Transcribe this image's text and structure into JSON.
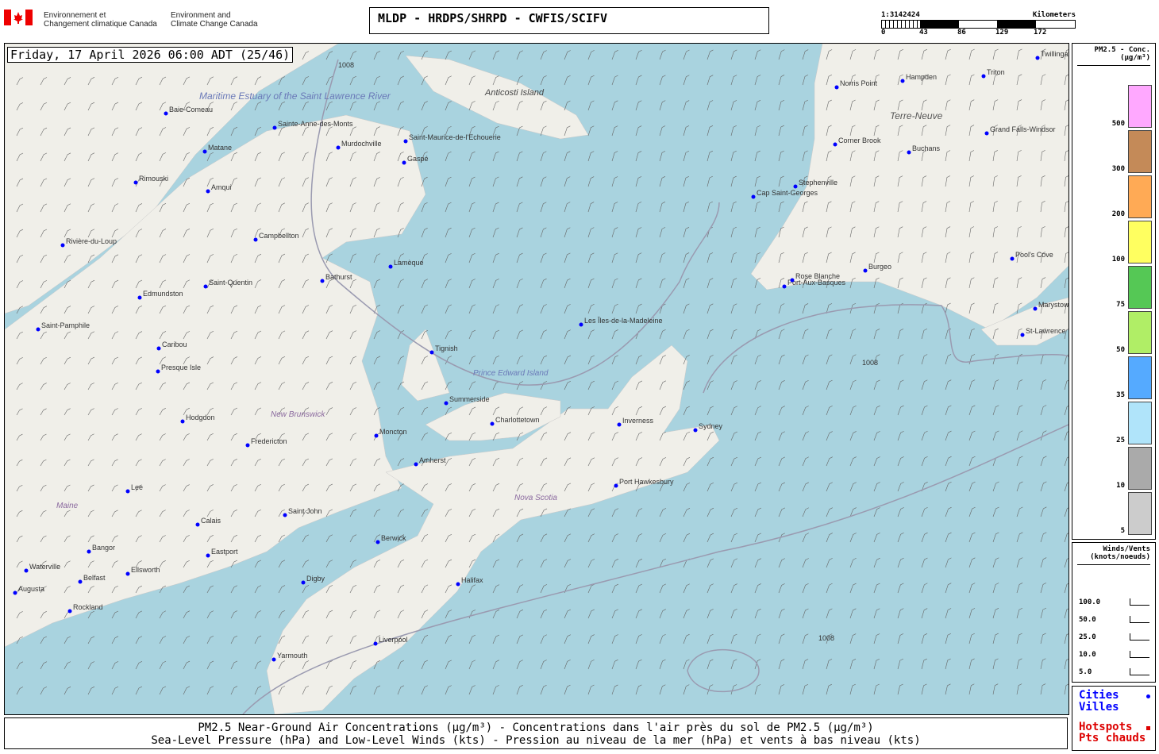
{
  "header": {
    "agency_fr": [
      "Environnement et",
      "Changement climatique Canada"
    ],
    "agency_en": [
      "Environment and",
      "Climate Change Canada"
    ],
    "title": "MLDP - HRDPS/SHRPD - CWFIS/SCIFV",
    "scale": {
      "ratio": "1:3142424",
      "unit": "Kilometers",
      "ticks": [
        "0",
        "43",
        "86",
        "129",
        "172"
      ]
    }
  },
  "map": {
    "datetime": "Friday, 17 April 2026 06:00 ADT (25/46)",
    "colors": {
      "water": "#a9d3df",
      "land": "#f0efe9",
      "city_dot": "#0000ff"
    },
    "region_labels": [
      "Maritime Estuary of the Saint Lawrence River",
      "Anticosti Island",
      "Terre-Neuve",
      "Prince Edward Island",
      "New Brunswick",
      "Nova Scotia",
      "Maine"
    ],
    "isobar_label": "1008",
    "cities": [
      "Baie-Comeau",
      "Sainte-Anne-des-Monts",
      "Matane",
      "Rimouski",
      "Amqui",
      "Murdochville",
      "Saint-Maurice-de-l'Echouerie",
      "Gaspé",
      "Rivière-du-Loup",
      "Campbellton",
      "Bathurst",
      "Lamèque",
      "Saint-Quentin",
      "Edmundston",
      "Saint-Pamphile",
      "Caribou",
      "Presque Isle",
      "Tignish",
      "Summerside",
      "Charlottetown",
      "Moncton",
      "Hodgdon",
      "Fredericton",
      "Amherst",
      "Lee",
      "Saint John",
      "Calais",
      "Bangor",
      "Eastport",
      "Waterville",
      "Ellsworth",
      "Belfast",
      "Augusta",
      "Rockland",
      "Berwick",
      "Digby",
      "Halifax",
      "Liverpool",
      "Yarmouth",
      "Les Îles-de-la-Madeleine",
      "Inverness",
      "Sydney",
      "Port Hawkesbury",
      "Cap Saint-Georges",
      "Stephenville",
      "Port-Aux-Basques",
      "Rose Blanche",
      "Burgeo",
      "Norris Point",
      "Hampden",
      "Triton",
      "Twillingate",
      "Corner Brook",
      "Buchans",
      "Grand Falls-Windsor",
      "Pool's Cove",
      "Marystown",
      "St-Lawrence"
    ]
  },
  "legend": {
    "title": "PM2.5 - Conc.",
    "unit": "(µg/m³)",
    "levels": [
      {
        "value": "500",
        "color": "#ffa8ff"
      },
      {
        "value": "300",
        "color": "#c48a58"
      },
      {
        "value": "200",
        "color": "#ffaa55"
      },
      {
        "value": "100",
        "color": "#ffff60"
      },
      {
        "value": "75",
        "color": "#55c855"
      },
      {
        "value": "50",
        "color": "#b0ee66"
      },
      {
        "value": "35",
        "color": "#55aaff"
      },
      {
        "value": "25",
        "color": "#b0e4fa"
      },
      {
        "value": "10",
        "color": "#aaaaaa"
      },
      {
        "value": "5",
        "color": "#cccccc"
      }
    ]
  },
  "winds": {
    "title": "Winds/Vents",
    "unit": "(knots/noeuds)",
    "values": [
      "100.0",
      "50.0",
      "25.0",
      "10.0",
      "5.0"
    ]
  },
  "points": {
    "cities_en": "Cities",
    "cities_fr": "Villes",
    "hotspots_en": "Hotspots",
    "hotspots_fr": "Pts chauds",
    "cities_color": "#0000ff",
    "hotspots_color": "#dd0000"
  },
  "caption": {
    "line1": "PM2.5 Near-Ground Air Concentrations (µg/m³) - Concentrations dans l'air près du sol de PM2.5 (µg/m³)",
    "line2": "Sea-Level Pressure (hPa) and Low-Level Winds (kts) - Pression au niveau de la mer (hPa) et vents à bas niveau (kts)"
  }
}
